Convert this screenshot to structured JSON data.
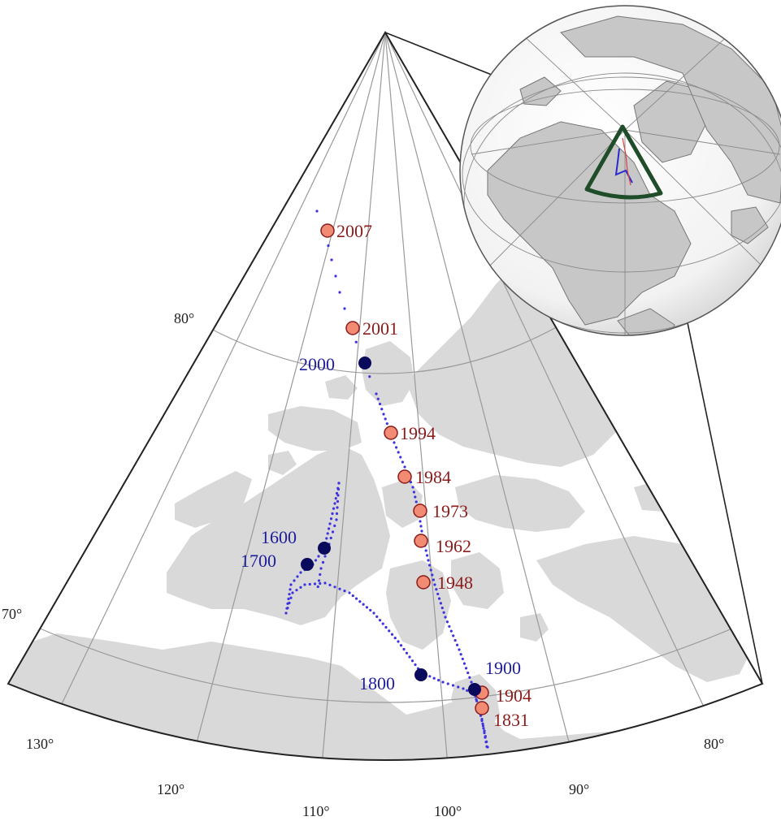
{
  "colors": {
    "land": "#d9d9d9",
    "sea": "#ffffff",
    "graticule": "#9a9a9a",
    "frame": "#222222",
    "observed_marker": "#f28b73",
    "observed_label": "#8b1a1a",
    "model_marker": "#0a0a5c",
    "model_label": "#1c1c9c",
    "track": "#3d33e0",
    "inset_highlight": "#1f4d2a"
  },
  "latitude_labels": [
    "80°",
    "70°"
  ],
  "longitude_labels": [
    "130°",
    "120°",
    "110°",
    "100°",
    "90°",
    "80°"
  ],
  "observed_positions": [
    {
      "year": "2007",
      "lat": 83.2,
      "lon": 110.0
    },
    {
      "year": "2001",
      "lat": 81.3,
      "lon": 110.8
    },
    {
      "year": "1994",
      "lat": 78.3,
      "lon": 104.0
    },
    {
      "year": "1984",
      "lat": 77.1,
      "lon": 102.6
    },
    {
      "year": "1973",
      "lat": 76.0,
      "lon": 101.0
    },
    {
      "year": "1962",
      "lat": 75.1,
      "lon": 101.0
    },
    {
      "year": "1948",
      "lat": 73.9,
      "lon": 100.9
    },
    {
      "year": "1904",
      "lat": 70.5,
      "lon": 96.3
    },
    {
      "year": "1831",
      "lat": 70.1,
      "lon": 96.5
    }
  ],
  "model_positions": [
    {
      "year": "2000",
      "lat": 79.8,
      "lon": 106.0
    },
    {
      "year": "1900",
      "lat": 70.8,
      "lon": 96.5
    },
    {
      "year": "1800",
      "lat": 71.0,
      "lon": 101.0
    },
    {
      "year": "1700",
      "lat": 74.0,
      "lon": 108.0
    },
    {
      "year": "1600",
      "lat": 74.6,
      "lon": 107.5
    }
  ],
  "inset": {
    "description_label": ""
  }
}
